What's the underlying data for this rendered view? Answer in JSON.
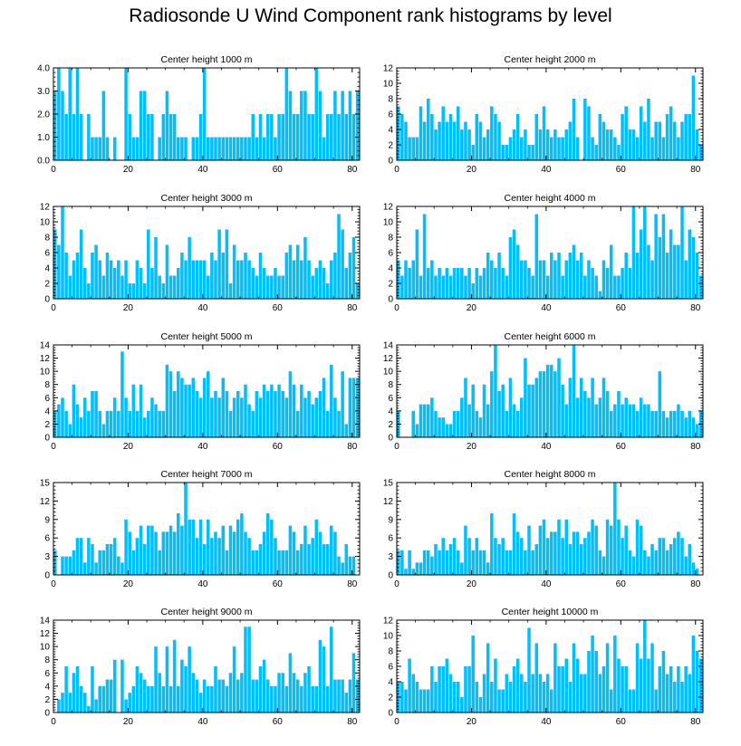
{
  "title": "Radiosonde U Wind Component rank histograms by level",
  "bar_color": "#00BFFF",
  "chart_data": [
    {
      "type": "bar",
      "title": "Center height 1000 m",
      "xlabel": "",
      "ylabel": "",
      "xlim": [
        0,
        82
      ],
      "ylim": [
        0,
        4
      ],
      "yticks": [
        0,
        1,
        2,
        3,
        4
      ],
      "ytick_labels": [
        "0.0",
        "1.0",
        "2.0",
        "3.0",
        "4.0"
      ],
      "xticks": [
        0,
        20,
        40,
        60,
        80
      ],
      "xtick_labels": [
        "0",
        "20",
        "40",
        "60",
        "80"
      ],
      "values": [
        3,
        4,
        3,
        2,
        4,
        2,
        4,
        2,
        0,
        2,
        1,
        1,
        1,
        3,
        1,
        0,
        1,
        0,
        0,
        4,
        2,
        1,
        1,
        3,
        3,
        2,
        2,
        0,
        1,
        2,
        3,
        2,
        2,
        1,
        1,
        1,
        0,
        1,
        1,
        2,
        4,
        1,
        1,
        1,
        1,
        1,
        1,
        1,
        1,
        1,
        1,
        1,
        1,
        2,
        1,
        2,
        1,
        2,
        2,
        1,
        2,
        2,
        4,
        3,
        2,
        2,
        3,
        3,
        2,
        2,
        4,
        3,
        1,
        2,
        2,
        3,
        2,
        3,
        2,
        3,
        2,
        3
      ]
    },
    {
      "type": "bar",
      "title": "Center height 2000 m",
      "xlabel": "",
      "ylabel": "",
      "xlim": [
        0,
        82
      ],
      "ylim": [
        0,
        12
      ],
      "yticks": [
        0,
        2,
        4,
        6,
        8,
        10,
        12
      ],
      "ytick_labels": [
        "0",
        "2",
        "4",
        "6",
        "8",
        "10",
        "12"
      ],
      "xticks": [
        0,
        20,
        40,
        60,
        80
      ],
      "xtick_labels": [
        "0",
        "20",
        "40",
        "60",
        "80"
      ],
      "values": [
        7,
        6,
        5,
        3,
        3,
        3,
        7,
        5,
        8,
        6,
        4,
        5,
        7,
        5,
        6,
        5,
        7,
        4,
        5,
        4,
        2,
        6,
        5,
        3,
        4,
        7,
        6,
        5,
        2,
        2,
        3,
        4,
        6,
        3,
        4,
        2,
        2,
        6,
        4,
        7,
        4,
        3,
        4,
        3,
        3,
        4,
        5,
        8,
        3,
        0,
        8,
        7,
        3,
        2,
        6,
        5,
        4,
        4,
        3,
        2,
        6,
        7,
        4,
        4,
        3,
        7,
        5,
        8,
        3,
        5,
        5,
        3,
        6,
        7,
        5,
        3,
        5,
        6,
        6,
        11,
        4,
        2
      ]
    },
    {
      "type": "bar",
      "title": "Center height 3000 m",
      "xlabel": "",
      "ylabel": "",
      "xlim": [
        0,
        82
      ],
      "ylim": [
        0,
        12
      ],
      "yticks": [
        0,
        2,
        4,
        6,
        8,
        10,
        12
      ],
      "ytick_labels": [
        "0",
        "2",
        "4",
        "6",
        "8",
        "10",
        "12"
      ],
      "xticks": [
        0,
        20,
        40,
        60,
        80
      ],
      "xtick_labels": [
        "0",
        "20",
        "40",
        "60",
        "80"
      ],
      "values": [
        9,
        7,
        12,
        6,
        3,
        5,
        6,
        9,
        4,
        2,
        6,
        7,
        5,
        3,
        6,
        5,
        4,
        5,
        3,
        5,
        2,
        2,
        5,
        4,
        2,
        9,
        4,
        8,
        3,
        2,
        7,
        3,
        3,
        4,
        6,
        5,
        8,
        5,
        5,
        5,
        5,
        3,
        6,
        5,
        9,
        6,
        9,
        2,
        7,
        5,
        5,
        6,
        5,
        4,
        3,
        6,
        4,
        3,
        3,
        4,
        3,
        3,
        6,
        7,
        5,
        7,
        5,
        8,
        5,
        3,
        4,
        5,
        4,
        2,
        5,
        6,
        11,
        9,
        4,
        6,
        8,
        2
      ]
    },
    {
      "type": "bar",
      "title": "Center height 4000 m",
      "xlabel": "",
      "ylabel": "",
      "xlim": [
        0,
        82
      ],
      "ylim": [
        0,
        12
      ],
      "yticks": [
        0,
        2,
        4,
        6,
        8,
        10,
        12
      ],
      "ytick_labels": [
        "0",
        "2",
        "4",
        "6",
        "8",
        "10",
        "12"
      ],
      "xticks": [
        0,
        20,
        40,
        60,
        80
      ],
      "xtick_labels": [
        "0",
        "20",
        "40",
        "60",
        "80"
      ],
      "values": [
        5,
        3,
        5,
        4,
        5,
        9,
        3,
        11,
        4,
        5,
        3,
        4,
        3,
        4,
        3,
        4,
        4,
        4,
        3,
        4,
        2,
        4,
        3,
        4,
        6,
        5,
        4,
        6,
        4,
        3,
        8,
        9,
        7,
        5,
        5,
        4,
        3,
        11,
        5,
        5,
        3,
        6,
        5,
        6,
        3,
        5,
        6,
        7,
        5,
        6,
        3,
        5,
        4,
        3,
        1,
        5,
        4,
        7,
        3,
        3,
        4,
        6,
        4,
        12,
        6,
        9,
        12,
        7,
        5,
        11,
        8,
        11,
        6,
        9,
        7,
        7,
        12,
        5,
        9,
        8,
        6,
        3
      ]
    },
    {
      "type": "bar",
      "title": "Center height 5000 m",
      "xlabel": "",
      "ylabel": "",
      "xlim": [
        0,
        82
      ],
      "ylim": [
        0,
        14
      ],
      "yticks": [
        0,
        2,
        4,
        6,
        8,
        10,
        12,
        14
      ],
      "ytick_labels": [
        "0",
        "2",
        "4",
        "6",
        "8",
        "10",
        "12",
        "14"
      ],
      "xticks": [
        0,
        20,
        40,
        60,
        80
      ],
      "xtick_labels": [
        "0",
        "20",
        "40",
        "60",
        "80"
      ],
      "values": [
        4,
        5,
        6,
        4,
        2,
        8,
        5,
        3,
        6,
        4,
        7,
        7,
        4,
        2,
        4,
        4,
        6,
        4,
        13,
        6,
        4,
        8,
        4,
        8,
        3,
        4,
        6,
        5,
        4,
        4,
        11,
        10,
        7,
        10,
        9,
        8,
        8,
        9,
        7,
        6,
        9,
        10,
        6,
        7,
        6,
        9,
        7,
        4,
        6,
        7,
        6,
        8,
        5,
        4,
        7,
        6,
        8,
        7,
        8,
        7,
        8,
        7,
        6,
        10,
        8,
        4,
        8,
        6,
        7,
        5,
        6,
        7,
        9,
        4,
        11,
        6,
        4,
        10,
        2,
        9,
        9,
        9
      ]
    },
    {
      "type": "bar",
      "title": "Center height 6000 m",
      "xlabel": "",
      "ylabel": "",
      "xlim": [
        0,
        82
      ],
      "ylim": [
        0,
        14
      ],
      "yticks": [
        0,
        2,
        4,
        6,
        8,
        10,
        12,
        14
      ],
      "ytick_labels": [
        "0",
        "2",
        "4",
        "6",
        "8",
        "10",
        "12",
        "14"
      ],
      "xticks": [
        0,
        20,
        40,
        60,
        80
      ],
      "xtick_labels": [
        "0",
        "20",
        "40",
        "60",
        "80"
      ],
      "values": [
        4,
        0,
        0,
        0,
        4,
        2,
        5,
        5,
        5,
        6,
        4,
        3,
        3,
        2,
        2,
        4,
        4,
        6,
        9,
        5,
        8,
        4,
        3,
        8,
        5,
        10,
        14,
        7,
        8,
        4,
        9,
        5,
        4,
        6,
        12,
        8,
        8,
        9,
        10,
        10,
        11,
        11,
        10,
        12,
        8,
        5,
        9,
        14,
        6,
        9,
        7,
        6,
        9,
        5,
        6,
        9,
        7,
        4,
        5,
        7,
        5,
        6,
        5,
        5,
        4,
        6,
        5,
        5,
        4,
        4,
        10,
        4,
        3,
        4,
        4,
        5,
        4,
        3,
        4,
        3,
        2,
        4
      ]
    },
    {
      "type": "bar",
      "title": "Center height 7000 m",
      "xlabel": "",
      "ylabel": "",
      "xlim": [
        0,
        82
      ],
      "ylim": [
        0,
        15
      ],
      "yticks": [
        0,
        3,
        6,
        9,
        12,
        15
      ],
      "ytick_labels": [
        "0",
        "3",
        "6",
        "9",
        "12",
        "15"
      ],
      "xticks": [
        0,
        20,
        40,
        60,
        80
      ],
      "xtick_labels": [
        "0",
        "20",
        "40",
        "60",
        "80"
      ],
      "values": [
        4,
        0,
        3,
        3,
        3,
        4,
        6,
        6,
        2,
        6,
        5,
        2,
        4,
        4,
        5,
        5,
        6,
        3,
        2,
        9,
        7,
        4,
        6,
        8,
        5,
        8,
        8,
        7,
        4,
        7,
        7,
        8,
        7,
        10,
        8,
        15,
        9,
        9,
        6,
        9,
        5,
        9,
        6,
        7,
        6,
        8,
        4,
        8,
        7,
        9,
        10,
        7,
        6,
        4,
        4,
        5,
        7,
        10,
        9,
        6,
        4,
        4,
        4,
        8,
        7,
        4,
        5,
        8,
        5,
        6,
        9,
        7,
        5,
        5,
        8,
        7,
        3,
        2,
        5,
        3,
        3,
        0
      ]
    },
    {
      "type": "bar",
      "title": "Center height 8000 m",
      "xlabel": "",
      "ylabel": "",
      "xlim": [
        0,
        82
      ],
      "ylim": [
        0,
        15
      ],
      "yticks": [
        0,
        3,
        6,
        9,
        12,
        15
      ],
      "ytick_labels": [
        "0",
        "3",
        "6",
        "9",
        "12",
        "15"
      ],
      "xticks": [
        0,
        20,
        40,
        60,
        80
      ],
      "xtick_labels": [
        "0",
        "20",
        "40",
        "60",
        "80"
      ],
      "values": [
        4,
        4,
        1,
        4,
        1,
        2,
        2,
        4,
        4,
        3,
        5,
        4,
        6,
        4,
        5,
        6,
        4,
        2,
        8,
        6,
        4,
        6,
        4,
        4,
        2,
        10,
        6,
        5,
        6,
        4,
        4,
        10,
        7,
        6,
        4,
        8,
        4,
        5,
        8,
        9,
        6,
        7,
        7,
        9,
        6,
        9,
        5,
        7,
        7,
        5,
        6,
        7,
        9,
        8,
        4,
        3,
        9,
        8,
        15,
        9,
        6,
        8,
        4,
        3,
        9,
        8,
        4,
        3,
        5,
        4,
        6,
        6,
        4,
        5,
        6,
        7,
        6,
        3,
        5,
        2,
        1,
        0
      ]
    },
    {
      "type": "bar",
      "title": "Center height 9000 m",
      "xlabel": "",
      "ylabel": "",
      "xlim": [
        0,
        82
      ],
      "ylim": [
        0,
        14
      ],
      "yticks": [
        0,
        2,
        4,
        6,
        8,
        10,
        12,
        14
      ],
      "ytick_labels": [
        "0",
        "2",
        "4",
        "6",
        "8",
        "10",
        "12",
        "14"
      ],
      "xticks": [
        0,
        20,
        40,
        60,
        80
      ],
      "xtick_labels": [
        "0",
        "20",
        "40",
        "60",
        "80"
      ],
      "values": [
        0,
        2,
        3,
        7,
        3,
        6,
        7,
        4,
        3,
        1,
        7,
        2,
        4,
        4,
        5,
        5,
        8,
        0,
        8,
        2,
        3,
        4,
        7,
        6,
        5,
        4,
        4,
        10,
        6,
        4,
        10,
        4,
        11,
        4,
        8,
        7,
        10,
        6,
        5,
        3,
        5,
        4,
        4,
        7,
        5,
        5,
        4,
        6,
        10,
        5,
        6,
        13,
        13,
        5,
        5,
        7,
        8,
        5,
        4,
        4,
        6,
        6,
        4,
        9,
        6,
        5,
        4,
        6,
        7,
        4,
        4,
        11,
        10,
        4,
        13,
        5,
        5,
        5,
        3,
        5,
        9,
        5
      ]
    },
    {
      "type": "bar",
      "title": "Center height 10000 m",
      "xlabel": "",
      "ylabel": "",
      "xlim": [
        0,
        82
      ],
      "ylim": [
        0,
        12
      ],
      "yticks": [
        0,
        2,
        4,
        6,
        8,
        10,
        12
      ],
      "ytick_labels": [
        "0",
        "2",
        "4",
        "6",
        "8",
        "10",
        "12"
      ],
      "xticks": [
        0,
        20,
        40,
        60,
        80
      ],
      "xtick_labels": [
        "0",
        "20",
        "40",
        "60",
        "80"
      ],
      "values": [
        4,
        4,
        3,
        7,
        5,
        4,
        3,
        3,
        3,
        6,
        4,
        6,
        6,
        7,
        5,
        4,
        4,
        2,
        6,
        6,
        10,
        4,
        2,
        5,
        9,
        4,
        7,
        3,
        3,
        5,
        4,
        6,
        7,
        5,
        4,
        11,
        5,
        9,
        5,
        4,
        5,
        3,
        9,
        6,
        6,
        7,
        4,
        9,
        7,
        5,
        5,
        8,
        10,
        8,
        5,
        6,
        9,
        3,
        10,
        7,
        6,
        6,
        3,
        3,
        9,
        7,
        12,
        7,
        9,
        3,
        6,
        8,
        5,
        6,
        4,
        6,
        4,
        6,
        5,
        10,
        8,
        7
      ]
    }
  ]
}
